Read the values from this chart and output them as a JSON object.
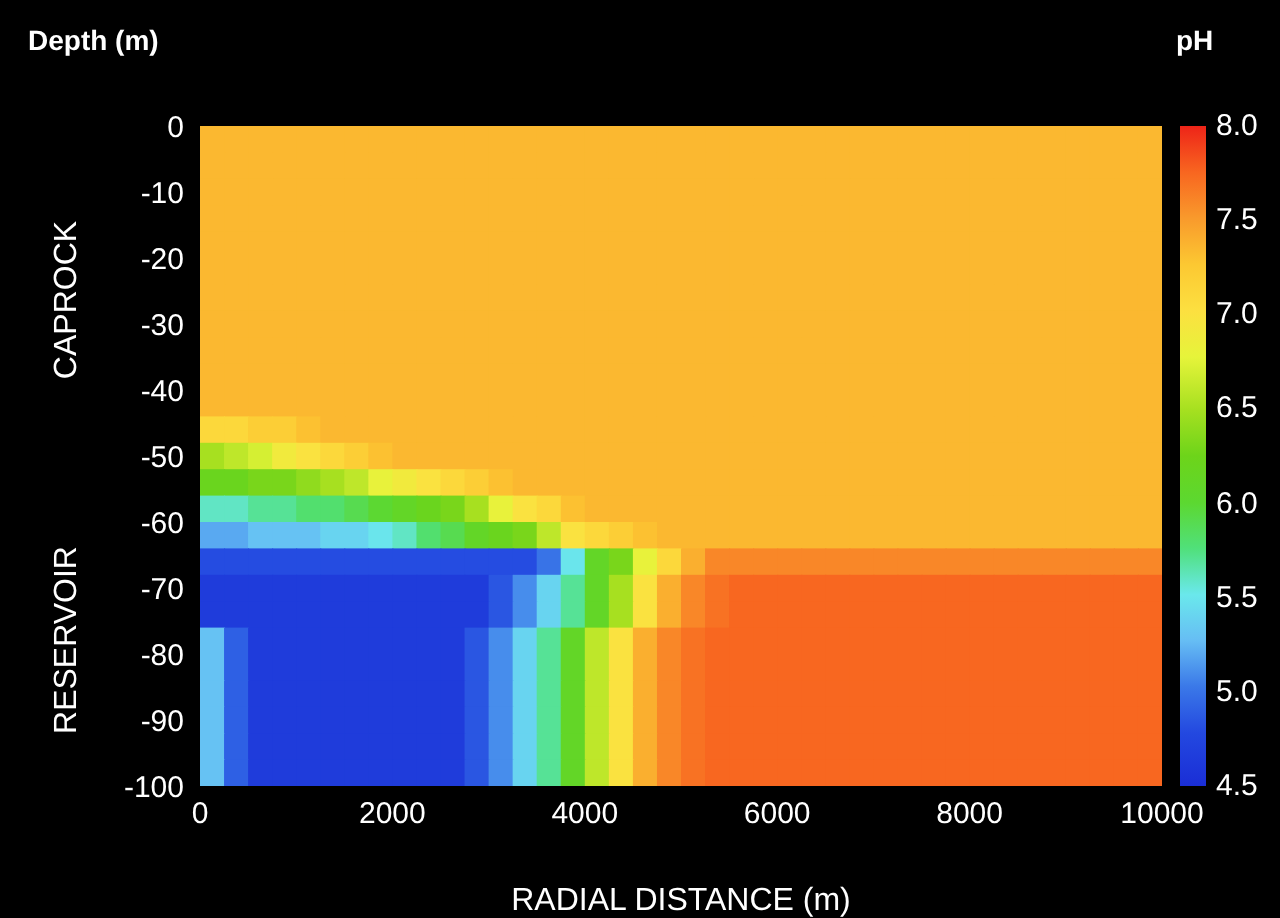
{
  "chart_data": {
    "type": "heatmap",
    "ylabel": "Depth (m)",
    "xlabel": "RADIAL DISTANCE (m)",
    "clabel": "pH",
    "annotations": [
      "CAPROCK",
      "RESERVOIR"
    ],
    "x": [
      125,
      375,
      625,
      875,
      1125,
      1375,
      1625,
      1875,
      2125,
      2375,
      2625,
      2875,
      3125,
      3375,
      3625,
      3875,
      4125,
      4375,
      4625,
      4875,
      5125,
      5375,
      5625,
      5875,
      6125,
      6375,
      6625,
      6875,
      7125,
      7375,
      7625,
      7875,
      8125,
      8375,
      8625,
      8875,
      9125,
      9375,
      9625,
      9875
    ],
    "y": [
      -2,
      -6,
      -10,
      -14,
      -18,
      -22,
      -26,
      -30,
      -34,
      -38,
      -42,
      -46,
      -50,
      -54,
      -58,
      -62,
      -66,
      -70,
      -74,
      -78,
      -82,
      -86,
      -90,
      -94,
      -98
    ],
    "xlim": [
      0,
      10000
    ],
    "xticks": [
      0,
      2000,
      4000,
      6000,
      8000,
      10000
    ],
    "ylim": [
      -100,
      0
    ],
    "yticks": [
      0,
      -10,
      -20,
      -30,
      -40,
      -50,
      -60,
      -70,
      -80,
      -90,
      -100
    ],
    "clim": [
      4.5,
      8
    ],
    "cticks": [
      {
        "value": 4.5,
        "label": "4.5"
      },
      {
        "value": 5,
        "label": "5.0"
      },
      {
        "value": 5.5,
        "label": "5.5"
      },
      {
        "value": 6,
        "label": "6.0"
      },
      {
        "value": 6.5,
        "label": "6.5"
      },
      {
        "value": 7,
        "label": "7.0"
      },
      {
        "value": 7.5,
        "label": "7.5"
      },
      {
        "value": 8,
        "label": "8.0"
      }
    ],
    "cells": [
      [
        7.35,
        7.35,
        7.35,
        7.35,
        7.35,
        7.35,
        7.35,
        7.35,
        7.35,
        7.35,
        7.35,
        7.35,
        7.35,
        7.35,
        7.35,
        7.35,
        7.35,
        7.35,
        7.35,
        7.35,
        7.35,
        7.35,
        7.35,
        7.35,
        7.35,
        7.35,
        7.35,
        7.35,
        7.35,
        7.35,
        7.35,
        7.35,
        7.35,
        7.35,
        7.35,
        7.35,
        7.35,
        7.35,
        7.35,
        7.35
      ],
      [
        7.35,
        7.35,
        7.35,
        7.35,
        7.35,
        7.35,
        7.35,
        7.35,
        7.35,
        7.35,
        7.35,
        7.35,
        7.35,
        7.35,
        7.35,
        7.35,
        7.35,
        7.35,
        7.35,
        7.35,
        7.35,
        7.35,
        7.35,
        7.35,
        7.35,
        7.35,
        7.35,
        7.35,
        7.35,
        7.35,
        7.35,
        7.35,
        7.35,
        7.35,
        7.35,
        7.35,
        7.35,
        7.35,
        7.35,
        7.35
      ],
      [
        7.35,
        7.35,
        7.35,
        7.35,
        7.35,
        7.35,
        7.35,
        7.35,
        7.35,
        7.35,
        7.35,
        7.35,
        7.35,
        7.35,
        7.35,
        7.35,
        7.35,
        7.35,
        7.35,
        7.35,
        7.35,
        7.35,
        7.35,
        7.35,
        7.35,
        7.35,
        7.35,
        7.35,
        7.35,
        7.35,
        7.35,
        7.35,
        7.35,
        7.35,
        7.35,
        7.35,
        7.35,
        7.35,
        7.35,
        7.35
      ],
      [
        7.35,
        7.35,
        7.35,
        7.35,
        7.35,
        7.35,
        7.35,
        7.35,
        7.35,
        7.35,
        7.35,
        7.35,
        7.35,
        7.35,
        7.35,
        7.35,
        7.35,
        7.35,
        7.35,
        7.35,
        7.35,
        7.35,
        7.35,
        7.35,
        7.35,
        7.35,
        7.35,
        7.35,
        7.35,
        7.35,
        7.35,
        7.35,
        7.35,
        7.35,
        7.35,
        7.35,
        7.35,
        7.35,
        7.35,
        7.35
      ],
      [
        7.35,
        7.35,
        7.35,
        7.35,
        7.35,
        7.35,
        7.35,
        7.35,
        7.35,
        7.35,
        7.35,
        7.35,
        7.35,
        7.35,
        7.35,
        7.35,
        7.35,
        7.35,
        7.35,
        7.35,
        7.35,
        7.35,
        7.35,
        7.35,
        7.35,
        7.35,
        7.35,
        7.35,
        7.35,
        7.35,
        7.35,
        7.35,
        7.35,
        7.35,
        7.35,
        7.35,
        7.35,
        7.35,
        7.35,
        7.35
      ],
      [
        7.35,
        7.35,
        7.35,
        7.35,
        7.35,
        7.35,
        7.35,
        7.35,
        7.35,
        7.35,
        7.35,
        7.35,
        7.35,
        7.35,
        7.35,
        7.35,
        7.35,
        7.35,
        7.35,
        7.35,
        7.35,
        7.35,
        7.35,
        7.35,
        7.35,
        7.35,
        7.35,
        7.35,
        7.35,
        7.35,
        7.35,
        7.35,
        7.35,
        7.35,
        7.35,
        7.35,
        7.35,
        7.35,
        7.35,
        7.35
      ],
      [
        7.35,
        7.35,
        7.35,
        7.35,
        7.35,
        7.35,
        7.35,
        7.35,
        7.35,
        7.35,
        7.35,
        7.35,
        7.35,
        7.35,
        7.35,
        7.35,
        7.35,
        7.35,
        7.35,
        7.35,
        7.35,
        7.35,
        7.35,
        7.35,
        7.35,
        7.35,
        7.35,
        7.35,
        7.35,
        7.35,
        7.35,
        7.35,
        7.35,
        7.35,
        7.35,
        7.35,
        7.35,
        7.35,
        7.35,
        7.35
      ],
      [
        7.35,
        7.35,
        7.35,
        7.35,
        7.35,
        7.35,
        7.35,
        7.35,
        7.35,
        7.35,
        7.35,
        7.35,
        7.35,
        7.35,
        7.35,
        7.35,
        7.35,
        7.35,
        7.35,
        7.35,
        7.35,
        7.35,
        7.35,
        7.35,
        7.35,
        7.35,
        7.35,
        7.35,
        7.35,
        7.35,
        7.35,
        7.35,
        7.35,
        7.35,
        7.35,
        7.35,
        7.35,
        7.35,
        7.35,
        7.35
      ],
      [
        7.35,
        7.35,
        7.35,
        7.35,
        7.35,
        7.35,
        7.35,
        7.35,
        7.35,
        7.35,
        7.35,
        7.35,
        7.35,
        7.35,
        7.35,
        7.35,
        7.35,
        7.35,
        7.35,
        7.35,
        7.35,
        7.35,
        7.35,
        7.35,
        7.35,
        7.35,
        7.35,
        7.35,
        7.35,
        7.35,
        7.35,
        7.35,
        7.35,
        7.35,
        7.35,
        7.35,
        7.35,
        7.35,
        7.35,
        7.35
      ],
      [
        7.35,
        7.35,
        7.35,
        7.35,
        7.35,
        7.35,
        7.35,
        7.35,
        7.35,
        7.35,
        7.35,
        7.35,
        7.35,
        7.35,
        7.35,
        7.35,
        7.35,
        7.35,
        7.35,
        7.35,
        7.35,
        7.35,
        7.35,
        7.35,
        7.35,
        7.35,
        7.35,
        7.35,
        7.35,
        7.35,
        7.35,
        7.35,
        7.35,
        7.35,
        7.35,
        7.35,
        7.35,
        7.35,
        7.35,
        7.35
      ],
      [
        7.35,
        7.35,
        7.35,
        7.35,
        7.35,
        7.35,
        7.35,
        7.35,
        7.35,
        7.35,
        7.35,
        7.35,
        7.35,
        7.35,
        7.35,
        7.35,
        7.35,
        7.35,
        7.35,
        7.35,
        7.35,
        7.35,
        7.35,
        7.35,
        7.35,
        7.35,
        7.35,
        7.35,
        7.35,
        7.35,
        7.35,
        7.35,
        7.35,
        7.35,
        7.35,
        7.35,
        7.35,
        7.35,
        7.35,
        7.35
      ],
      [
        7.1,
        7.1,
        7.2,
        7.2,
        7.3,
        7.35,
        7.35,
        7.35,
        7.35,
        7.35,
        7.35,
        7.35,
        7.35,
        7.35,
        7.35,
        7.35,
        7.35,
        7.35,
        7.35,
        7.35,
        7.35,
        7.35,
        7.35,
        7.35,
        7.35,
        7.35,
        7.35,
        7.35,
        7.35,
        7.35,
        7.35,
        7.35,
        7.35,
        7.35,
        7.35,
        7.35,
        7.35,
        7.35,
        7.35,
        7.35
      ],
      [
        6.5,
        6.6,
        6.7,
        6.9,
        7.0,
        7.1,
        7.2,
        7.3,
        7.35,
        7.35,
        7.35,
        7.35,
        7.35,
        7.35,
        7.35,
        7.35,
        7.35,
        7.35,
        7.35,
        7.35,
        7.35,
        7.35,
        7.35,
        7.35,
        7.35,
        7.35,
        7.35,
        7.35,
        7.35,
        7.35,
        7.35,
        7.35,
        7.35,
        7.35,
        7.35,
        7.35,
        7.35,
        7.35,
        7.35,
        7.35
      ],
      [
        6.2,
        6.2,
        6.3,
        6.3,
        6.4,
        6.5,
        6.6,
        6.8,
        6.9,
        7.0,
        7.1,
        7.2,
        7.3,
        7.35,
        7.35,
        7.35,
        7.35,
        7.35,
        7.35,
        7.35,
        7.35,
        7.35,
        7.35,
        7.35,
        7.35,
        7.35,
        7.35,
        7.35,
        7.35,
        7.35,
        7.35,
        7.35,
        7.35,
        7.35,
        7.35,
        7.35,
        7.35,
        7.35,
        7.35,
        7.35
      ],
      [
        5.6,
        5.6,
        5.7,
        5.7,
        5.8,
        5.8,
        5.9,
        6.0,
        6.1,
        6.2,
        6.3,
        6.5,
        6.8,
        7.0,
        7.1,
        7.3,
        7.35,
        7.35,
        7.35,
        7.35,
        7.35,
        7.35,
        7.35,
        7.35,
        7.35,
        7.35,
        7.35,
        7.35,
        7.35,
        7.35,
        7.35,
        7.35,
        7.35,
        7.35,
        7.35,
        7.35,
        7.35,
        7.35,
        7.35,
        7.35
      ],
      [
        5.2,
        5.2,
        5.3,
        5.3,
        5.3,
        5.4,
        5.4,
        5.5,
        5.6,
        5.8,
        5.9,
        6.1,
        6.2,
        6.3,
        6.6,
        7.0,
        7.1,
        7.2,
        7.3,
        7.35,
        7.35,
        7.35,
        7.35,
        7.35,
        7.35,
        7.35,
        7.35,
        7.35,
        7.35,
        7.35,
        7.35,
        7.35,
        7.35,
        7.35,
        7.35,
        7.35,
        7.35,
        7.35,
        7.35,
        7.35
      ],
      [
        4.8,
        4.8,
        4.8,
        4.8,
        4.8,
        4.8,
        4.8,
        4.8,
        4.8,
        4.8,
        4.8,
        4.8,
        4.8,
        4.8,
        5.0,
        5.5,
        6.1,
        6.3,
        6.8,
        7.1,
        7.4,
        7.6,
        7.6,
        7.6,
        7.6,
        7.6,
        7.6,
        7.6,
        7.6,
        7.6,
        7.6,
        7.6,
        7.6,
        7.6,
        7.6,
        7.6,
        7.6,
        7.6,
        7.6,
        7.6
      ],
      [
        4.65,
        4.65,
        4.65,
        4.65,
        4.65,
        4.65,
        4.65,
        4.65,
        4.65,
        4.65,
        4.65,
        4.65,
        4.85,
        5.1,
        5.4,
        5.7,
        6.1,
        6.5,
        7.0,
        7.4,
        7.6,
        7.7,
        7.75,
        7.75,
        7.75,
        7.75,
        7.75,
        7.75,
        7.75,
        7.75,
        7.75,
        7.75,
        7.75,
        7.75,
        7.75,
        7.75,
        7.75,
        7.75,
        7.75,
        7.75
      ],
      [
        4.65,
        4.65,
        4.65,
        4.65,
        4.65,
        4.65,
        4.65,
        4.65,
        4.65,
        4.65,
        4.65,
        4.65,
        4.85,
        5.1,
        5.4,
        5.7,
        6.1,
        6.5,
        7.0,
        7.4,
        7.6,
        7.7,
        7.75,
        7.75,
        7.75,
        7.75,
        7.75,
        7.75,
        7.75,
        7.75,
        7.75,
        7.75,
        7.75,
        7.75,
        7.75,
        7.75,
        7.75,
        7.75,
        7.75,
        7.75
      ],
      [
        5.3,
        4.9,
        4.65,
        4.65,
        4.65,
        4.65,
        4.65,
        4.65,
        4.65,
        4.65,
        4.65,
        4.85,
        5.1,
        5.4,
        5.7,
        6.1,
        6.6,
        7.0,
        7.4,
        7.6,
        7.7,
        7.75,
        7.75,
        7.75,
        7.75,
        7.75,
        7.75,
        7.75,
        7.75,
        7.75,
        7.75,
        7.75,
        7.75,
        7.75,
        7.75,
        7.75,
        7.75,
        7.75,
        7.75,
        7.75
      ],
      [
        5.3,
        4.9,
        4.65,
        4.65,
        4.65,
        4.65,
        4.65,
        4.65,
        4.65,
        4.65,
        4.65,
        4.85,
        5.1,
        5.4,
        5.7,
        6.1,
        6.6,
        7.0,
        7.4,
        7.6,
        7.7,
        7.75,
        7.75,
        7.75,
        7.75,
        7.75,
        7.75,
        7.75,
        7.75,
        7.75,
        7.75,
        7.75,
        7.75,
        7.75,
        7.75,
        7.75,
        7.75,
        7.75,
        7.75,
        7.75
      ],
      [
        5.3,
        4.9,
        4.65,
        4.65,
        4.65,
        4.65,
        4.65,
        4.65,
        4.65,
        4.65,
        4.65,
        4.85,
        5.1,
        5.4,
        5.7,
        6.1,
        6.6,
        7.0,
        7.4,
        7.6,
        7.7,
        7.75,
        7.75,
        7.75,
        7.75,
        7.75,
        7.75,
        7.75,
        7.75,
        7.75,
        7.75,
        7.75,
        7.75,
        7.75,
        7.75,
        7.75,
        7.75,
        7.75,
        7.75,
        7.75
      ],
      [
        5.3,
        4.9,
        4.65,
        4.65,
        4.65,
        4.65,
        4.65,
        4.65,
        4.65,
        4.65,
        4.65,
        4.85,
        5.1,
        5.4,
        5.7,
        6.1,
        6.6,
        7.0,
        7.4,
        7.6,
        7.7,
        7.75,
        7.75,
        7.75,
        7.75,
        7.75,
        7.75,
        7.75,
        7.75,
        7.75,
        7.75,
        7.75,
        7.75,
        7.75,
        7.75,
        7.75,
        7.75,
        7.75,
        7.75,
        7.75
      ],
      [
        5.3,
        4.9,
        4.65,
        4.65,
        4.65,
        4.65,
        4.65,
        4.65,
        4.65,
        4.65,
        4.65,
        4.85,
        5.1,
        5.4,
        5.7,
        6.1,
        6.6,
        7.0,
        7.4,
        7.6,
        7.7,
        7.75,
        7.75,
        7.75,
        7.75,
        7.75,
        7.75,
        7.75,
        7.75,
        7.75,
        7.75,
        7.75,
        7.75,
        7.75,
        7.75,
        7.75,
        7.75,
        7.75,
        7.75,
        7.75
      ],
      [
        5.3,
        4.9,
        4.65,
        4.65,
        4.65,
        4.65,
        4.65,
        4.65,
        4.65,
        4.65,
        4.65,
        4.85,
        5.1,
        5.4,
        5.7,
        6.1,
        6.6,
        7.0,
        7.4,
        7.6,
        7.7,
        7.75,
        7.75,
        7.75,
        7.75,
        7.75,
        7.75,
        7.75,
        7.75,
        7.75,
        7.75,
        7.75,
        7.75,
        7.75,
        7.75,
        7.75,
        7.75,
        7.75,
        7.75,
        7.75
      ]
    ]
  }
}
